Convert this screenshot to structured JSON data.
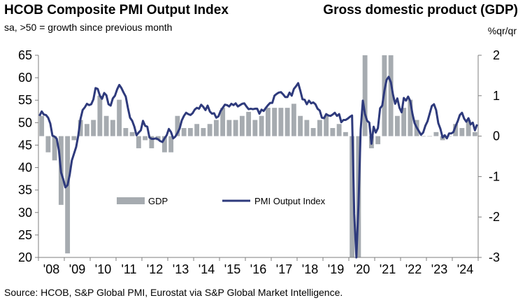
{
  "header": {
    "left_title": "HCOB Composite PMI Output Index",
    "left_subtitle": "sa, >50 = growth since previous month",
    "right_title": "Gross domestic product (GDP)",
    "right_unit": "%qr/qr"
  },
  "source": "Source: HCOB, S&P Global PMI, Eurostat via S&P Global Market Intelligence.",
  "colors": {
    "pmi_line": "#2e3a7c",
    "gdp_bar": "#a6abb0",
    "axis": "#7f7f7f"
  },
  "chart_data": {
    "type": "bar",
    "left_axis": {
      "ylim": [
        20,
        65
      ],
      "ticks": [
        "65",
        "60",
        "55",
        "50",
        "45",
        "40",
        "35",
        "30",
        "25",
        "20"
      ]
    },
    "right_axis": {
      "ylim": [
        -3,
        2
      ],
      "ticks": [
        "2",
        "1",
        "0",
        "-1",
        "-2",
        "-3"
      ]
    },
    "x_labels": [
      "'08",
      "'09",
      "'10",
      "'11",
      "'12",
      "'13",
      "'14",
      "'15",
      "'16",
      "'17",
      "'18",
      "'19",
      "'20",
      "'21",
      "'22",
      "'23",
      "'24"
    ],
    "legend": {
      "bar": "GDP",
      "line": "PMI Output Index",
      "position": "center-left"
    },
    "gdp": {
      "name": "GDP",
      "quarters": [
        "2008Q1",
        "2008Q2",
        "2008Q3",
        "2008Q4",
        "2009Q1",
        "2009Q2",
        "2009Q3",
        "2009Q4",
        "2010Q1",
        "2010Q2",
        "2010Q3",
        "2010Q4",
        "2011Q1",
        "2011Q2",
        "2011Q3",
        "2011Q4",
        "2012Q1",
        "2012Q2",
        "2012Q3",
        "2012Q4",
        "2013Q1",
        "2013Q2",
        "2013Q3",
        "2013Q4",
        "2014Q1",
        "2014Q2",
        "2014Q3",
        "2014Q4",
        "2015Q1",
        "2015Q2",
        "2015Q3",
        "2015Q4",
        "2016Q1",
        "2016Q2",
        "2016Q3",
        "2016Q4",
        "2017Q1",
        "2017Q2",
        "2017Q3",
        "2017Q4",
        "2018Q1",
        "2018Q2",
        "2018Q3",
        "2018Q4",
        "2019Q1",
        "2019Q2",
        "2019Q3",
        "2019Q4",
        "2020Q1",
        "2020Q2",
        "2020Q3",
        "2020Q4",
        "2021Q1",
        "2021Q2",
        "2021Q3",
        "2021Q4",
        "2022Q1",
        "2022Q2",
        "2022Q3",
        "2022Q4",
        "2023Q1",
        "2023Q2",
        "2023Q3",
        "2023Q4",
        "2024Q1",
        "2024Q2",
        "2024Q3",
        "2024Q4"
      ],
      "values": [
        0.5,
        -0.4,
        -0.6,
        -1.7,
        -2.9,
        -0.1,
        0.4,
        0.3,
        0.4,
        1.0,
        0.5,
        0.4,
        0.9,
        0.2,
        0.1,
        -0.3,
        -0.1,
        -0.3,
        -0.1,
        -0.4,
        -0.4,
        0.5,
        0.2,
        0.2,
        0.3,
        0.2,
        0.3,
        0.4,
        0.7,
        0.4,
        0.4,
        0.5,
        0.6,
        0.4,
        0.5,
        0.7,
        0.7,
        0.7,
        0.7,
        0.8,
        0.5,
        0.4,
        0.2,
        0.4,
        0.5,
        0.2,
        0.3,
        0.1,
        -3.6,
        -11.5,
        12.4,
        -0.3,
        -0.2,
        2.2,
        2.2,
        0.5,
        0.7,
        0.9,
        0.4,
        0.0,
        0.0,
        0.1,
        -0.1,
        0.0,
        0.3,
        0.2,
        0.4,
        0.1
      ]
    },
    "pmi": {
      "name": "PMI Output Index",
      "start_month": "2008-01",
      "values": [
        51.5,
        52.5,
        51.8,
        51.7,
        51.1,
        49.8,
        47.1,
        46.9,
        46.4,
        43.8,
        38.9,
        37.4,
        35.6,
        36.1,
        38.4,
        41.6,
        43.1,
        44.6,
        47.2,
        50.8,
        52.8,
        53.4,
        54.2,
        53.9,
        54.1,
        55.2,
        57.7,
        57.5,
        56.0,
        55.3,
        56.6,
        56.1,
        54.1,
        53.8,
        55.4,
        56.0,
        57.4,
        58.4,
        57.7,
        56.7,
        55.8,
        53.3,
        51.1,
        50.4,
        49.1,
        47.2,
        47.8,
        48.3,
        50.4,
        49.3,
        49.1,
        46.7,
        46.4,
        46.4,
        46.5,
        46.3,
        45.9,
        45.7,
        46.5,
        47.2,
        48.6,
        47.9,
        46.5,
        46.9,
        47.7,
        48.7,
        50.5,
        51.5,
        52.2,
        51.9,
        51.7,
        52.1,
        52.9,
        53.3,
        53.1,
        54.0,
        53.5,
        52.8,
        53.8,
        52.5,
        52.0,
        52.1,
        51.1,
        51.4,
        52.6,
        53.3,
        54.0,
        53.9,
        53.6,
        54.2,
        53.9,
        54.3,
        53.6,
        53.9,
        54.2,
        54.3,
        53.6,
        53.0,
        53.1,
        53.0,
        53.1,
        53.1,
        52.0,
        52.9,
        52.6,
        53.3,
        53.9,
        54.4,
        54.4,
        56.0,
        56.4,
        56.7,
        56.8,
        56.3,
        55.7,
        55.7,
        56.7,
        56.0,
        57.5,
        58.1,
        58.8,
        57.1,
        55.2,
        55.1,
        54.1,
        54.9,
        54.3,
        54.5,
        54.1,
        53.1,
        52.7,
        51.1,
        51.0,
        51.9,
        51.6,
        51.5,
        51.8,
        52.2,
        51.5,
        51.9,
        50.1,
        50.6,
        50.6,
        50.9,
        51.3,
        51.6,
        29.7,
        13.6,
        31.9,
        48.5,
        54.9,
        51.9,
        50.4,
        50.0,
        45.3,
        49.1,
        47.8,
        48.8,
        53.2,
        53.8,
        57.1,
        59.5,
        60.2,
        59.0,
        56.2,
        54.2,
        55.4,
        53.3,
        52.3,
        55.5,
        54.9,
        55.8,
        54.8,
        52.0,
        49.9,
        48.9,
        48.1,
        47.3,
        47.8,
        49.3,
        50.3,
        52.0,
        53.7,
        54.1,
        52.8,
        49.9,
        48.6,
        46.7,
        47.2,
        46.5,
        47.6,
        47.6,
        47.9,
        49.2,
        50.3,
        51.7,
        52.2,
        50.9,
        50.2,
        51.0,
        49.6,
        50.0,
        48.3,
        49.6
      ]
    }
  }
}
